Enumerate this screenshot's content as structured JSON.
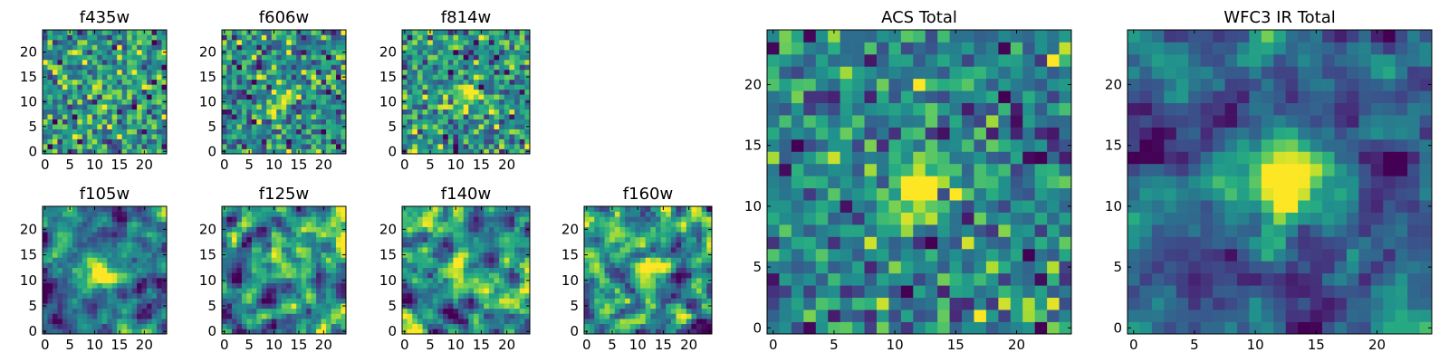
{
  "figure": {
    "description_none": ""
  },
  "chart_data": [
    {
      "type": "heatmap",
      "title": "f435w",
      "grid_size": [
        25,
        25
      ],
      "xlim": [
        -0.5,
        24.5
      ],
      "ylim": [
        -0.5,
        24.5
      ],
      "xticks": [
        0,
        5,
        10,
        15,
        20
      ],
      "yticks": [
        0,
        5,
        10,
        15,
        20
      ],
      "colormap": "viridis",
      "seed": 435,
      "source_center": [
        11.5,
        10.5
      ],
      "source_amplitude": 0.25,
      "source_sigma": 2.5,
      "noise_scale": 1.0,
      "smoothing": 0
    },
    {
      "type": "heatmap",
      "title": "f606w",
      "grid_size": [
        25,
        25
      ],
      "xlim": [
        -0.5,
        24.5
      ],
      "ylim": [
        -0.5,
        24.5
      ],
      "xticks": [
        0,
        5,
        10,
        15,
        20
      ],
      "yticks": [
        0,
        5,
        10,
        15,
        20
      ],
      "colormap": "viridis",
      "seed": 606,
      "source_center": [
        11.5,
        10.5
      ],
      "source_amplitude": 0.7,
      "source_sigma": 1.8,
      "noise_scale": 1.0,
      "smoothing": 0
    },
    {
      "type": "heatmap",
      "title": "f814w",
      "grid_size": [
        25,
        25
      ],
      "xlim": [
        -0.5,
        24.5
      ],
      "ylim": [
        -0.5,
        24.5
      ],
      "xticks": [
        0,
        5,
        10,
        15,
        20
      ],
      "yticks": [
        0,
        5,
        10,
        15,
        20
      ],
      "colormap": "viridis",
      "seed": 814,
      "source_center": [
        11.5,
        11
      ],
      "source_amplitude": 0.9,
      "source_sigma": 2.0,
      "noise_scale": 1.0,
      "smoothing": 0
    },
    {
      "type": "heatmap",
      "title": "f105w",
      "grid_size": [
        25,
        25
      ],
      "xlim": [
        -0.5,
        24.5
      ],
      "ylim": [
        -0.5,
        24.5
      ],
      "xticks": [
        0,
        5,
        10,
        15,
        20
      ],
      "yticks": [
        0,
        5,
        10,
        15,
        20
      ],
      "colormap": "viridis",
      "seed": 105,
      "source_center": [
        11,
        11
      ],
      "source_amplitude": 1.1,
      "source_sigma": 2.2,
      "noise_scale": 1.0,
      "smoothing": 1
    },
    {
      "type": "heatmap",
      "title": "f125w",
      "grid_size": [
        25,
        25
      ],
      "xlim": [
        -0.5,
        24.5
      ],
      "ylim": [
        -0.5,
        24.5
      ],
      "xticks": [
        0,
        5,
        10,
        15,
        20
      ],
      "yticks": [
        0,
        5,
        10,
        15,
        20
      ],
      "colormap": "viridis",
      "seed": 125,
      "source_center": [
        12,
        12
      ],
      "source_amplitude": 0.6,
      "source_sigma": 2.5,
      "noise_scale": 1.0,
      "smoothing": 1
    },
    {
      "type": "heatmap",
      "title": "f140w",
      "grid_size": [
        25,
        25
      ],
      "xlim": [
        -0.5,
        24.5
      ],
      "ylim": [
        -0.5,
        24.5
      ],
      "xticks": [
        0,
        5,
        10,
        15,
        20
      ],
      "yticks": [
        0,
        5,
        10,
        15,
        20
      ],
      "colormap": "viridis",
      "seed": 140,
      "source_center": [
        12,
        12
      ],
      "source_amplitude": 0.5,
      "source_sigma": 2.5,
      "noise_scale": 1.0,
      "smoothing": 1
    },
    {
      "type": "heatmap",
      "title": "f160w",
      "grid_size": [
        25,
        25
      ],
      "xlim": [
        -0.5,
        24.5
      ],
      "ylim": [
        -0.5,
        24.5
      ],
      "xticks": [
        0,
        5,
        10,
        15,
        20
      ],
      "yticks": [
        0,
        5,
        10,
        15,
        20
      ],
      "colormap": "viridis",
      "seed": 160,
      "source_center": [
        12,
        12
      ],
      "source_amplitude": 0.9,
      "source_sigma": 2.0,
      "noise_scale": 1.0,
      "smoothing": 1
    },
    {
      "type": "heatmap",
      "title": "ACS Total",
      "grid_size": [
        25,
        25
      ],
      "xlim": [
        -0.5,
        24.5
      ],
      "ylim": [
        -0.5,
        24.5
      ],
      "xticks": [
        0,
        5,
        10,
        15,
        20
      ],
      "yticks": [
        0,
        5,
        10,
        15,
        20
      ],
      "colormap": "viridis",
      "seed": 999,
      "source_center": [
        12,
        11.5
      ],
      "source_amplitude": 1.3,
      "source_sigma": 1.5,
      "noise_scale": 0.7,
      "smoothing": 0
    },
    {
      "type": "heatmap",
      "title": "WFC3 IR Total",
      "grid_size": [
        25,
        25
      ],
      "xlim": [
        -0.5,
        24.5
      ],
      "ylim": [
        -0.5,
        24.5
      ],
      "xticks": [
        0,
        5,
        10,
        15,
        20
      ],
      "yticks": [
        0,
        5,
        10,
        15,
        20
      ],
      "colormap": "viridis",
      "seed": 777,
      "source_center": [
        12,
        12.5
      ],
      "source_amplitude": 1.4,
      "source_sigma": 2.0,
      "noise_scale": 0.7,
      "smoothing": 1
    }
  ],
  "colors": {
    "frame": "#000000",
    "background": "#ffffff"
  }
}
